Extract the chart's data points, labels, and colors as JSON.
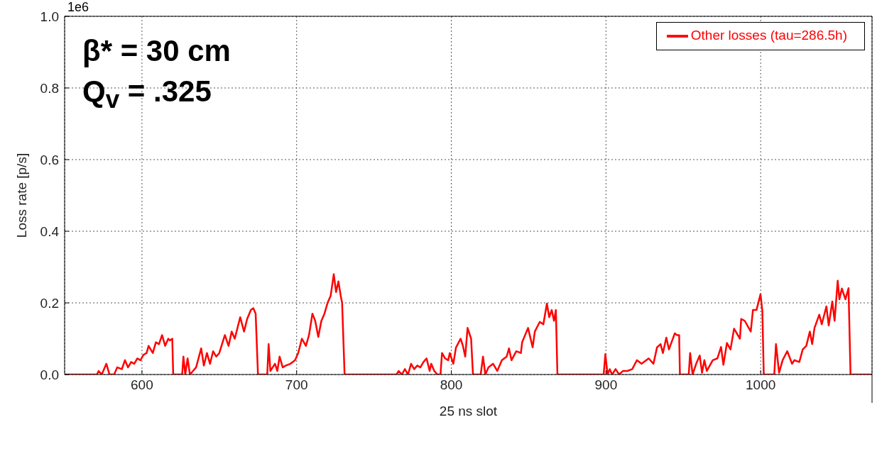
{
  "chart_data": {
    "type": "line",
    "xlabel": "25 ns slot",
    "ylabel": "Loss rate [p/s]",
    "annotations": [
      "1e6",
      "β* = 30 cm",
      "Q$_{v}$ = .325"
    ],
    "xlim": [
      550,
      1072
    ],
    "xticks": [
      600,
      700,
      800,
      900,
      1000
    ],
    "ylim": [
      0,
      1.0
    ],
    "yticks": [
      {
        "value": 0,
        "label": "0.0"
      },
      0.2,
      0.4,
      0.6,
      0.8,
      {
        "value": 1.0,
        "label": "1.0"
      }
    ],
    "grid": true,
    "legend": "top right",
    "marker": "none",
    "line_style": "solid",
    "series": [
      {
        "name": "Other losses (tau=286.5h)",
        "color": "#ff0000",
        "x": [
          550,
          570.9,
          572,
          574,
          577,
          579,
          582,
          584,
          587,
          589,
          591,
          593,
          595,
          597,
          599,
          601,
          603,
          604.3,
          607,
          609,
          611,
          613,
          615,
          617,
          618,
          619.6,
          620.2,
          626,
          626.8,
          628,
          629.5,
          631,
          633,
          635,
          638.3,
          640,
          642,
          644,
          646,
          648,
          650,
          653.6,
          656,
          658,
          660,
          663.5,
          666,
          668,
          670.4,
          672,
          673.5,
          675,
          681,
          681.9,
          683,
          686,
          687.5,
          689,
          691,
          693,
          696,
          699,
          701,
          703.4,
          706,
          708,
          710.2,
          712,
          714,
          716,
          718,
          720,
          722,
          724,
          725.5,
          727,
          728.5,
          729.4,
          731,
          764.6,
          766,
          768,
          770,
          772,
          774,
          776,
          778,
          780,
          782,
          784,
          786,
          787,
          789,
          791,
          793,
          794,
          796,
          798,
          799,
          801.3,
          803,
          806,
          807.5,
          809,
          810.5,
          812.8,
          814,
          819,
          820.5,
          822,
          824,
          827,
          829.7,
          832.7,
          835.8,
          837.3,
          838.9,
          842,
          845,
          845.8,
          849.6,
          852.6,
          854,
          857.2,
          859.5,
          861.8,
          863.3,
          864.9,
          866.4,
          867.6,
          868.6,
          898.5,
          899.6,
          901,
          902.4,
          904,
          906.2,
          908.5,
          911,
          913.8,
          917,
          920,
          923,
          927.6,
          930.7,
          933,
          935.3,
          936.8,
          939,
          940.7,
          944.5,
          946,
          947.3,
          947.8,
          953.5,
          954.4,
          956,
          958.3,
          960.6,
          962.1,
          963.6,
          965.2,
          969,
          972,
          974.4,
          975.9,
          978.2,
          980.5,
          982.8,
          986.6,
          987.4,
          989.7,
          993.6,
          995,
          997.3,
          999.9,
          1001.1,
          1002,
          1008.8,
          1009.9,
          1011.9,
          1014.2,
          1017.2,
          1020.3,
          1021.8,
          1025,
          1027.2,
          1029.5,
          1031.8,
          1033.3,
          1034.8,
          1037.9,
          1039.5,
          1042.5,
          1044,
          1046.3,
          1047.8,
          1049.8,
          1050.9,
          1052.5,
          1054.8,
          1056.8,
          1058.1,
          1072
        ],
        "values": [
          0,
          0,
          0.01,
          0,
          0.03,
          0,
          0,
          0.02,
          0.015,
          0.04,
          0.02,
          0.035,
          0.03,
          0.045,
          0.04,
          0.055,
          0.06,
          0.08,
          0.06,
          0.09,
          0.085,
          0.11,
          0.08,
          0.1,
          0.095,
          0.1,
          0,
          0,
          0.05,
          0,
          0.045,
          0,
          0.01,
          0.02,
          0.073,
          0.025,
          0.06,
          0.03,
          0.065,
          0.05,
          0.06,
          0.11,
          0.08,
          0.12,
          0.1,
          0.16,
          0.12,
          0.155,
          0.18,
          0.185,
          0.17,
          0,
          0,
          0.085,
          0.01,
          0.03,
          0.01,
          0.05,
          0.02,
          0.025,
          0.03,
          0.04,
          0.06,
          0.1,
          0.08,
          0.11,
          0.17,
          0.15,
          0.105,
          0.15,
          0.17,
          0.2,
          0.22,
          0.28,
          0.23,
          0.26,
          0.22,
          0.2,
          0,
          0,
          0.01,
          0,
          0.015,
          0,
          0.03,
          0.015,
          0.025,
          0.02,
          0.035,
          0.045,
          0.01,
          0.03,
          0.01,
          0,
          0,
          0.06,
          0.045,
          0.04,
          0.06,
          0.03,
          0.075,
          0.1,
          0.08,
          0.05,
          0.13,
          0.1,
          0,
          0,
          0.05,
          0,
          0.02,
          0.03,
          0.01,
          0.04,
          0.05,
          0.073,
          0.04,
          0.065,
          0.06,
          0.09,
          0.13,
          0.076,
          0.12,
          0.147,
          0.14,
          0.198,
          0.16,
          0.18,
          0.15,
          0.18,
          0,
          0,
          0.057,
          0,
          0.015,
          0,
          0.015,
          0,
          0.01,
          0.01,
          0.015,
          0.04,
          0.03,
          0.045,
          0.03,
          0.076,
          0.085,
          0.06,
          0.103,
          0.07,
          0.115,
          0.11,
          0.11,
          0,
          0,
          0.06,
          0,
          0.03,
          0.053,
          0.005,
          0.04,
          0.01,
          0.04,
          0.045,
          0.077,
          0.027,
          0.088,
          0.07,
          0.128,
          0.1,
          0.155,
          0.15,
          0.12,
          0.18,
          0.18,
          0.224,
          0.177,
          0,
          0,
          0.085,
          0.005,
          0.04,
          0.065,
          0.03,
          0.04,
          0.035,
          0.07,
          0.08,
          0.12,
          0.085,
          0.13,
          0.167,
          0.14,
          0.19,
          0.137,
          0.204,
          0.15,
          0.262,
          0.21,
          0.24,
          0.21,
          0.241,
          0,
          0
        ]
      }
    ]
  }
}
